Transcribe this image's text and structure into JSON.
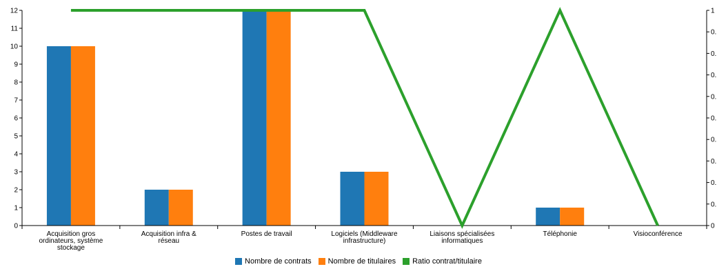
{
  "chart_data": {
    "type": "bar",
    "categories": [
      "Acquisition gros ordinateurs, système stockage",
      "Acquisition infra & réseau",
      "Postes de travail",
      "Logiciels (Middleware infrastructure)",
      "Liaisons spécialisées informatiques",
      "Téléphonie",
      "Visioconférence"
    ],
    "category_lines": [
      [
        "Acquisition gros",
        "ordinateurs, système",
        "stockage"
      ],
      [
        "Acquisition infra &",
        "réseau"
      ],
      [
        "Postes de travail"
      ],
      [
        "Logiciels (Middleware",
        "infrastructure)"
      ],
      [
        "Liaisons spécialisées",
        "informatiques"
      ],
      [
        "Téléphonie"
      ],
      [
        "Visioconférence"
      ]
    ],
    "series": [
      {
        "name": "Nombre de contrats",
        "type": "bar",
        "axis": "left",
        "color": "#1f77b4",
        "values": [
          10,
          2,
          12,
          3,
          0,
          1,
          0
        ]
      },
      {
        "name": "Nombre de titulaires",
        "type": "bar",
        "axis": "left",
        "color": "#ff7f0e",
        "values": [
          10,
          2,
          12,
          3,
          0,
          1,
          0
        ]
      },
      {
        "name": "Ratio contrat/titulaire",
        "type": "line",
        "axis": "right",
        "color": "#2ca02c",
        "values": [
          1,
          1,
          1,
          1,
          0,
          1,
          0
        ]
      }
    ],
    "y_left": {
      "min": 0,
      "max": 12,
      "ticks": [
        "0",
        "1",
        "2",
        "3",
        "4",
        "5",
        "6",
        "7",
        "8",
        "9",
        "10",
        "11",
        "12"
      ]
    },
    "y_right": {
      "min": 0,
      "max": 1,
      "ticks": [
        "0",
        "0.",
        "0.",
        "0.",
        "0.",
        "0.",
        "0.",
        "0.",
        "0.",
        "0.",
        "1"
      ]
    },
    "legend_position": "bottom-center",
    "grid": false,
    "title": "",
    "xlabel": "",
    "ylabel": ""
  }
}
